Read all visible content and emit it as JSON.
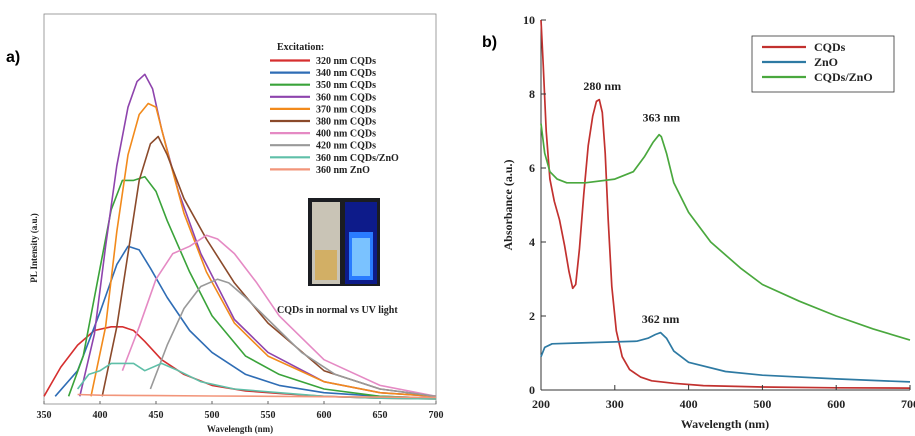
{
  "panel_a": {
    "label": "a)"
  },
  "panel_b": {
    "label": "b)"
  },
  "chart_data": [
    {
      "type": "line",
      "panel": "a)",
      "xlabel": "Wavelength (nm)",
      "ylabel": "PL Intensity (a.u.)",
      "xlim": [
        350,
        700
      ],
      "ylim": [
        0,
        100
      ],
      "x_ticks": [
        350,
        400,
        450,
        500,
        550,
        600,
        650,
        700
      ],
      "legend_title": "Excitation:",
      "legend_position": "top-right",
      "inset_caption": "CQDs in normal vs UV light",
      "series": [
        {
          "name": "320 nm CQDs",
          "color": "#d62f2f",
          "x": [
            350,
            365,
            380,
            395,
            410,
            420,
            430,
            440,
            455,
            475,
            500,
            530,
            560,
            600,
            650,
            700
          ],
          "values": [
            1,
            9,
            15,
            19,
            20,
            20,
            19,
            16,
            11,
            7,
            4,
            2.5,
            1.8,
            1,
            0.5,
            0.3
          ]
        },
        {
          "name": "340 nm CQDs",
          "color": "#2f6db5",
          "x": [
            360,
            380,
            400,
            415,
            425,
            435,
            445,
            460,
            480,
            500,
            530,
            560,
            600,
            650,
            700
          ],
          "values": [
            1,
            8,
            24,
            37,
            42,
            41,
            36,
            28,
            19,
            13,
            7,
            4,
            2,
            1,
            0.5
          ]
        },
        {
          "name": "350 nm CQDs",
          "color": "#3aa33a",
          "x": [
            372,
            385,
            400,
            410,
            420,
            430,
            440,
            450,
            460,
            480,
            500,
            530,
            560,
            600,
            650,
            700
          ],
          "values": [
            1,
            12,
            36,
            52,
            60,
            60,
            61,
            57,
            49,
            35,
            23,
            12,
            7,
            3,
            1,
            0.5
          ]
        },
        {
          "name": "360 nm CQDs",
          "color": "#8e44ad",
          "x": [
            382,
            395,
            405,
            415,
            425,
            433,
            440,
            447,
            455,
            470,
            490,
            520,
            550,
            600,
            650,
            700
          ],
          "values": [
            1,
            18,
            42,
            64,
            80,
            87,
            89,
            85,
            74,
            57,
            40,
            22,
            13,
            5,
            2,
            1
          ]
        },
        {
          "name": "370 nm CQDs",
          "color": "#f28a1b",
          "x": [
            392,
            405,
            415,
            425,
            435,
            443,
            450,
            460,
            475,
            495,
            520,
            550,
            600,
            650,
            700
          ],
          "values": [
            1,
            20,
            46,
            67,
            78,
            81,
            80,
            68,
            51,
            35,
            21,
            12,
            5,
            2,
            1
          ]
        },
        {
          "name": "380 nm CQDs",
          "color": "#8b4a2b",
          "x": [
            402,
            415,
            425,
            435,
            445,
            452,
            460,
            475,
            495,
            520,
            550,
            600,
            650,
            700
          ],
          "values": [
            1,
            20,
            40,
            60,
            70,
            72,
            67,
            55,
            44,
            32,
            21,
            8,
            3,
            1
          ]
        },
        {
          "name": "400 nm CQDs",
          "color": "#e58ac4",
          "x": [
            420,
            435,
            450,
            465,
            480,
            495,
            505,
            520,
            540,
            560,
            600,
            650,
            700
          ],
          "values": [
            8,
            20,
            33,
            40,
            42,
            45,
            44,
            40,
            32,
            23,
            11,
            4,
            1
          ]
        },
        {
          "name": "420 nm CQDs",
          "color": "#999999",
          "x": [
            445,
            460,
            475,
            490,
            505,
            515,
            530,
            550,
            580,
            610,
            650,
            700
          ],
          "values": [
            3,
            15,
            25,
            31,
            33,
            32,
            28,
            22,
            13,
            7,
            3,
            1
          ]
        },
        {
          "name": "360 nm CQDs/ZnO",
          "color": "#5fbfa8",
          "x": [
            380,
            390,
            400,
            410,
            420,
            430,
            440,
            455,
            470,
            490,
            520,
            560,
            600,
            650,
            700
          ],
          "values": [
            3,
            7,
            8,
            10,
            10,
            10,
            8,
            10,
            8,
            5,
            3,
            2,
            1,
            0.5,
            0.3
          ]
        },
        {
          "name": "360 nm ZnO",
          "color": "#f2957a",
          "x": [
            380,
            400,
            450,
            500,
            550,
            600,
            650,
            700
          ],
          "values": [
            1.5,
            1.3,
            1.2,
            1.1,
            1,
            0.9,
            0.8,
            0.7
          ]
        }
      ]
    },
    {
      "type": "line",
      "panel": "b)",
      "xlabel": "Wavelength (nm)",
      "ylabel": "Absorbance (a.u.)",
      "xlim": [
        200,
        700
      ],
      "ylim": [
        0,
        10
      ],
      "x_ticks": [
        200,
        300,
        400,
        500,
        600,
        700
      ],
      "y_ticks": [
        0,
        2,
        4,
        6,
        8,
        10
      ],
      "legend_position": "top-right",
      "annotations": [
        {
          "text": "280 nm",
          "x": 283,
          "y": 7.95
        },
        {
          "text": "363 nm",
          "x": 363,
          "y": 7.1
        },
        {
          "text": "362 nm",
          "x": 362,
          "y": 1.65
        }
      ],
      "series": [
        {
          "name": "CQDs",
          "color": "#c2312f",
          "x": [
            200,
            203,
            207,
            212,
            218,
            225,
            232,
            238,
            243,
            247,
            252,
            258,
            264,
            270,
            275,
            279,
            283,
            287,
            291,
            296,
            302,
            310,
            320,
            335,
            350,
            380,
            420,
            500,
            600,
            700
          ],
          "values": [
            10,
            8.8,
            7,
            5.7,
            5.1,
            4.6,
            3.9,
            3.2,
            2.75,
            2.85,
            3.8,
            5.3,
            6.6,
            7.4,
            7.8,
            7.85,
            7.5,
            6.4,
            4.6,
            2.8,
            1.6,
            0.9,
            0.55,
            0.35,
            0.25,
            0.18,
            0.12,
            0.08,
            0.06,
            0.05
          ]
        },
        {
          "name": "ZnO",
          "color": "#2e7aa3",
          "x": [
            200,
            205,
            215,
            250,
            300,
            330,
            345,
            355,
            362,
            370,
            380,
            400,
            450,
            500,
            600,
            700
          ],
          "values": [
            0.9,
            1.15,
            1.25,
            1.27,
            1.3,
            1.32,
            1.4,
            1.5,
            1.55,
            1.4,
            1.05,
            0.75,
            0.5,
            0.4,
            0.3,
            0.22
          ]
        },
        {
          "name": "CQDs/ZnO",
          "color": "#4aa83e",
          "x": [
            200,
            205,
            212,
            222,
            235,
            260,
            300,
            325,
            340,
            352,
            360,
            363,
            370,
            380,
            400,
            430,
            470,
            500,
            550,
            600,
            650,
            700
          ],
          "values": [
            7.2,
            6.4,
            5.9,
            5.7,
            5.6,
            5.6,
            5.7,
            5.9,
            6.3,
            6.7,
            6.9,
            6.85,
            6.4,
            5.6,
            4.8,
            4.0,
            3.3,
            2.85,
            2.4,
            2.0,
            1.65,
            1.35
          ]
        }
      ]
    }
  ]
}
